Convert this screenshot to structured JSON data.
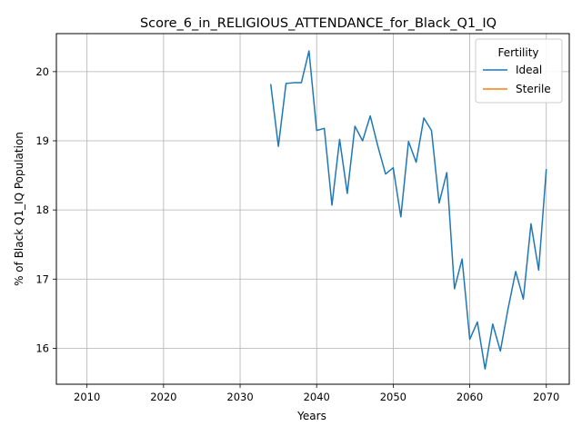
{
  "chart_data": {
    "type": "line",
    "title": "Score_6_in_RELIGIOUS_ATTENDANCE_for_Black_Q1_IQ",
    "xlabel": "Years",
    "ylabel": "% of Black Q1_IQ Population",
    "xlim": [
      2006,
      2073
    ],
    "ylim": [
      15.48,
      20.55
    ],
    "xticks": [
      2010,
      2020,
      2030,
      2040,
      2050,
      2060,
      2070
    ],
    "yticks": [
      16,
      17,
      18,
      19,
      20
    ],
    "grid": true,
    "legend": {
      "title": "Fertility",
      "placement": "top-right",
      "entries": [
        "Ideal",
        "Sterile"
      ]
    },
    "series": [
      {
        "name": "Ideal",
        "color": "#1f77b4",
        "x": [
          2034,
          2035,
          2036,
          2037,
          2038,
          2039,
          2040,
          2041,
          2042,
          2043,
          2044,
          2045,
          2046,
          2047,
          2048,
          2049,
          2050,
          2051,
          2052,
          2053,
          2054,
          2055,
          2056,
          2057,
          2058,
          2059,
          2060,
          2061,
          2062,
          2063,
          2064,
          2065,
          2066,
          2067,
          2068,
          2069,
          2070
        ],
        "y": [
          19.82,
          18.92,
          19.83,
          19.84,
          19.84,
          20.3,
          19.15,
          19.18,
          18.07,
          19.02,
          18.24,
          19.21,
          19.0,
          19.36,
          18.92,
          18.52,
          18.61,
          17.9,
          18.99,
          18.69,
          19.33,
          19.15,
          18.1,
          18.54,
          16.86,
          17.29,
          16.13,
          16.38,
          15.7,
          16.35,
          15.96,
          16.57,
          17.11,
          16.71,
          17.8,
          17.13,
          18.59
        ]
      },
      {
        "name": "Sterile",
        "color": "#ff7f0e",
        "x": [],
        "y": []
      }
    ]
  }
}
